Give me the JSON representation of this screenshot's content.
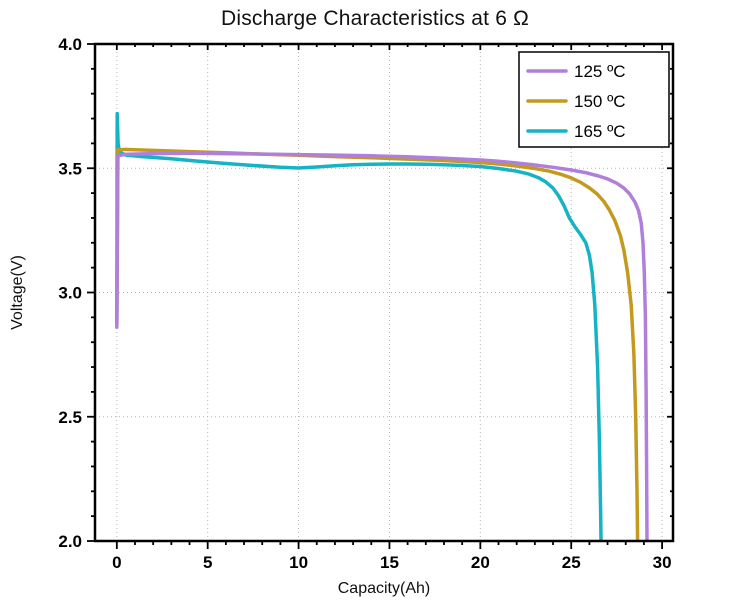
{
  "chart_data": {
    "type": "line",
    "title": "Discharge Characteristics at 6 Ω",
    "xlabel": "Capacity(Ah)",
    "ylabel": "Voltage(V)",
    "xlim": [
      0,
      30
    ],
    "ylim": [
      2.0,
      4.0
    ],
    "x_display": [
      -1.2,
      30.6
    ],
    "xticks": [
      0,
      5,
      10,
      15,
      20,
      25,
      30
    ],
    "xtick_labels": [
      "0",
      "5",
      "10",
      "15",
      "20",
      "25",
      "30"
    ],
    "yticks": [
      2.0,
      2.5,
      3.0,
      3.5,
      4.0
    ],
    "ytick_labels": [
      "2.0",
      "2.5",
      "3.0",
      "3.5",
      "4.0"
    ],
    "x_minor_step": 1,
    "y_minor_step": 0.1,
    "grid": true,
    "grid_color": "#b3b3b3",
    "axis_color": "#000000",
    "legend": {
      "position": "top-right",
      "border_color": "#000000",
      "bg": "#ffffff"
    },
    "series": [
      {
        "name": "165 ºC",
        "color": "#16b3c4",
        "points": [
          [
            0,
            2.88
          ],
          [
            0.02,
            3.72
          ],
          [
            0.07,
            3.6
          ],
          [
            0.15,
            3.565
          ],
          [
            0.5,
            3.553
          ],
          [
            1.5,
            3.546
          ],
          [
            3,
            3.538
          ],
          [
            4.5,
            3.528
          ],
          [
            6,
            3.519
          ],
          [
            7.5,
            3.511
          ],
          [
            9,
            3.504
          ],
          [
            10,
            3.501
          ],
          [
            11,
            3.505
          ],
          [
            12,
            3.51
          ],
          [
            13,
            3.514
          ],
          [
            14,
            3.516
          ],
          [
            15,
            3.517
          ],
          [
            16,
            3.517
          ],
          [
            17,
            3.516
          ],
          [
            18,
            3.514
          ],
          [
            19,
            3.511
          ],
          [
            20,
            3.507
          ],
          [
            21,
            3.499
          ],
          [
            22,
            3.488
          ],
          [
            22.7,
            3.476
          ],
          [
            23.2,
            3.462
          ],
          [
            23.6,
            3.445
          ],
          [
            24,
            3.42
          ],
          [
            24.3,
            3.39
          ],
          [
            24.6,
            3.35
          ],
          [
            24.9,
            3.3
          ],
          [
            25.2,
            3.265
          ],
          [
            25.5,
            3.235
          ],
          [
            25.8,
            3.2
          ],
          [
            26,
            3.15
          ],
          [
            26.15,
            3.08
          ],
          [
            26.3,
            2.95
          ],
          [
            26.45,
            2.7
          ],
          [
            26.55,
            2.4
          ],
          [
            26.62,
            2.1
          ],
          [
            26.64,
            2.0
          ]
        ]
      },
      {
        "name": "150 ºC",
        "color": "#c49a1d",
        "points": [
          [
            0,
            2.87
          ],
          [
            0.03,
            3.3
          ],
          [
            0.06,
            3.574
          ],
          [
            0.5,
            3.576
          ],
          [
            2,
            3.572
          ],
          [
            4,
            3.567
          ],
          [
            6,
            3.562
          ],
          [
            8,
            3.557
          ],
          [
            10,
            3.552
          ],
          [
            12,
            3.547
          ],
          [
            14,
            3.542
          ],
          [
            16,
            3.537
          ],
          [
            18,
            3.531
          ],
          [
            19,
            3.527
          ],
          [
            20,
            3.523
          ],
          [
            21,
            3.517
          ],
          [
            22,
            3.509
          ],
          [
            23,
            3.499
          ],
          [
            23.8,
            3.488
          ],
          [
            24.5,
            3.474
          ],
          [
            25,
            3.461
          ],
          [
            25.5,
            3.444
          ],
          [
            26,
            3.421
          ],
          [
            26.4,
            3.398
          ],
          [
            26.8,
            3.366
          ],
          [
            27.1,
            3.332
          ],
          [
            27.4,
            3.29
          ],
          [
            27.7,
            3.23
          ],
          [
            27.9,
            3.17
          ],
          [
            28.1,
            3.08
          ],
          [
            28.3,
            2.95
          ],
          [
            28.45,
            2.75
          ],
          [
            28.55,
            2.5
          ],
          [
            28.62,
            2.2
          ],
          [
            28.65,
            2.0
          ]
        ]
      },
      {
        "name": "125 ºC",
        "color": "#b07fd9",
        "points": [
          [
            0,
            2.86
          ],
          [
            0.03,
            3.2
          ],
          [
            0.06,
            3.55
          ],
          [
            0.5,
            3.556
          ],
          [
            2,
            3.559
          ],
          [
            4,
            3.56
          ],
          [
            6,
            3.559
          ],
          [
            8,
            3.557
          ],
          [
            10,
            3.555
          ],
          [
            12,
            3.553
          ],
          [
            14,
            3.55
          ],
          [
            16,
            3.546
          ],
          [
            18,
            3.54
          ],
          [
            19,
            3.537
          ],
          [
            20,
            3.533
          ],
          [
            21,
            3.528
          ],
          [
            22,
            3.521
          ],
          [
            23,
            3.513
          ],
          [
            24,
            3.504
          ],
          [
            25,
            3.493
          ],
          [
            25.8,
            3.482
          ],
          [
            26.5,
            3.469
          ],
          [
            27,
            3.457
          ],
          [
            27.5,
            3.44
          ],
          [
            27.9,
            3.42
          ],
          [
            28.2,
            3.398
          ],
          [
            28.5,
            3.365
          ],
          [
            28.7,
            3.33
          ],
          [
            28.85,
            3.28
          ],
          [
            28.95,
            3.2
          ],
          [
            29.02,
            3.08
          ],
          [
            29.08,
            2.9
          ],
          [
            29.12,
            2.6
          ],
          [
            29.15,
            2.3
          ],
          [
            29.17,
            2.0
          ]
        ]
      }
    ],
    "legend_order": [
      "125 ºC",
      "150 ºC",
      "165 ºC"
    ]
  }
}
